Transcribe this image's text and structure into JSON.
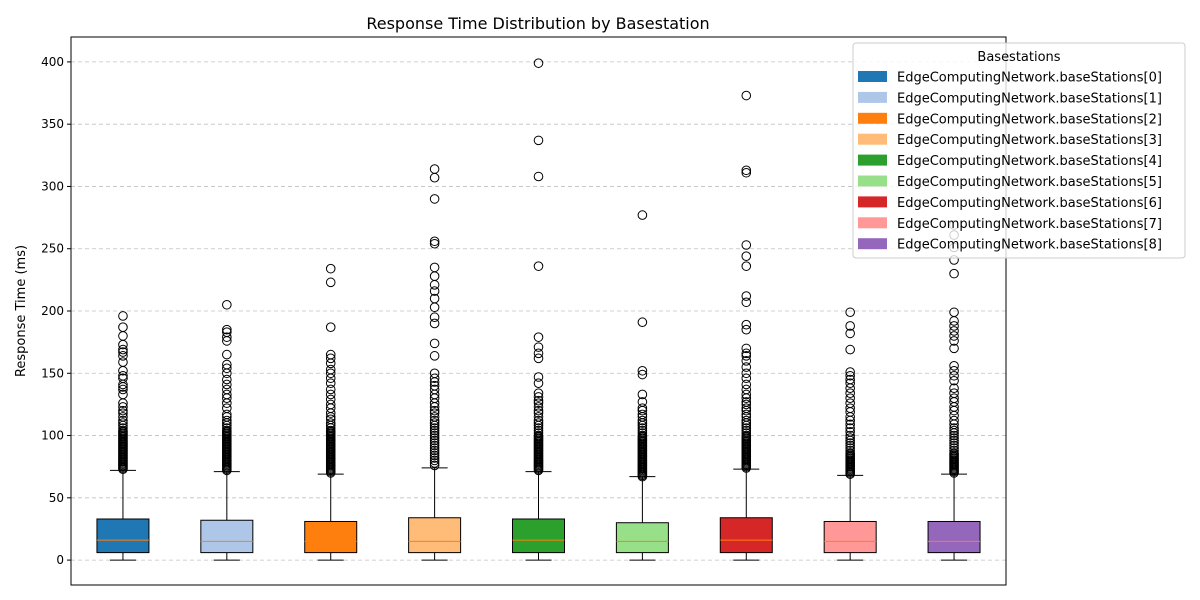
{
  "chart_data": {
    "type": "box",
    "title": "Response Time Distribution by Basestation",
    "xlabel": "",
    "ylabel": "Response Time (ms)",
    "ylim": [
      -20,
      420
    ],
    "yticks": [
      0,
      50,
      100,
      150,
      200,
      250,
      300,
      350,
      400
    ],
    "grid": "y-dashed",
    "legend": {
      "title": "Basestations",
      "placement": "upper-right-outside"
    },
    "series": [
      {
        "name": "EdgeComputingNetwork.baseStations[0]",
        "color": "#1f77b4",
        "whisker_low": 0,
        "q1": 6,
        "median": 16,
        "q3": 33,
        "whisker_high": 72,
        "fliers": [
          73,
          74,
          75,
          76,
          77,
          78,
          79,
          80,
          81,
          82,
          83,
          84,
          85,
          86,
          87,
          88,
          89,
          90,
          91,
          92,
          93,
          94,
          95,
          96,
          97,
          98,
          99,
          100,
          101,
          102,
          103,
          104,
          106,
          108,
          110,
          112,
          115,
          118,
          120,
          123,
          126,
          133,
          137,
          139,
          141,
          146,
          148,
          152,
          159,
          164,
          167,
          169,
          173,
          180,
          187,
          196
        ]
      },
      {
        "name": "EdgeComputingNetwork.baseStations[1]",
        "color": "#aec7e8",
        "whisker_low": 0,
        "q1": 6,
        "median": 15,
        "q3": 32,
        "whisker_high": 71,
        "fliers": [
          72,
          73,
          74,
          75,
          76,
          77,
          78,
          79,
          80,
          81,
          82,
          83,
          84,
          85,
          86,
          87,
          88,
          89,
          90,
          91,
          92,
          93,
          94,
          95,
          96,
          97,
          98,
          99,
          100,
          101,
          102,
          103,
          104,
          106,
          108,
          110,
          112,
          115,
          117,
          122,
          126,
          130,
          133,
          137,
          141,
          145,
          150,
          154,
          157,
          165,
          176,
          179,
          183,
          185,
          205
        ]
      },
      {
        "name": "EdgeComputingNetwork.baseStations[2]",
        "color": "#ff7f0e",
        "whisker_low": 0,
        "q1": 6,
        "median": 15,
        "q3": 31,
        "whisker_high": 69,
        "fliers": [
          70,
          71,
          72,
          73,
          74,
          75,
          76,
          77,
          78,
          79,
          80,
          81,
          82,
          83,
          84,
          85,
          86,
          87,
          88,
          89,
          90,
          91,
          92,
          93,
          94,
          95,
          96,
          97,
          98,
          99,
          100,
          101,
          102,
          103,
          104,
          106,
          108,
          110,
          113,
          115,
          118,
          122,
          125,
          129,
          133,
          137,
          142,
          146,
          150,
          153,
          158,
          162,
          165,
          187,
          223,
          234
        ]
      },
      {
        "name": "EdgeComputingNetwork.baseStations[3]",
        "color": "#ffbb78",
        "whisker_low": 0,
        "q1": 6,
        "median": 15,
        "q3": 34,
        "whisker_high": 74,
        "fliers": [
          76,
          78,
          80,
          82,
          84,
          86,
          88,
          90,
          92,
          94,
          96,
          98,
          100,
          102,
          104,
          106,
          108,
          110,
          112,
          115,
          118,
          120,
          123,
          126,
          130,
          133,
          137,
          140,
          143,
          146,
          150,
          164,
          174,
          190,
          195,
          203,
          210,
          216,
          221,
          228,
          235,
          254,
          256,
          290,
          307,
          314
        ]
      },
      {
        "name": "EdgeComputingNetwork.baseStations[4]",
        "color": "#2ca02c",
        "whisker_low": 0,
        "q1": 6,
        "median": 16,
        "q3": 33,
        "whisker_high": 71,
        "fliers": [
          72,
          73,
          74,
          75,
          76,
          77,
          78,
          79,
          80,
          81,
          82,
          83,
          84,
          85,
          86,
          87,
          88,
          89,
          90,
          91,
          92,
          93,
          94,
          95,
          96,
          97,
          98,
          99,
          100,
          102,
          104,
          106,
          108,
          110,
          112,
          115,
          118,
          120,
          123,
          126,
          128,
          131,
          134,
          142,
          147,
          162,
          166,
          171,
          179,
          236,
          308,
          337,
          399
        ]
      },
      {
        "name": "EdgeComputingNetwork.baseStations[5]",
        "color": "#98df8a",
        "whisker_low": 0,
        "q1": 6,
        "median": 15,
        "q3": 30,
        "whisker_high": 67,
        "fliers": [
          67,
          68,
          69,
          70,
          71,
          72,
          73,
          74,
          75,
          76,
          77,
          78,
          79,
          80,
          81,
          82,
          83,
          84,
          85,
          86,
          87,
          88,
          89,
          90,
          91,
          92,
          93,
          94,
          95,
          96,
          97,
          98,
          99,
          100,
          102,
          104,
          106,
          108,
          110,
          112,
          115,
          117,
          120,
          122,
          127,
          133,
          149,
          152,
          191,
          277
        ]
      },
      {
        "name": "EdgeComputingNetwork.baseStations[6]",
        "color": "#d62728",
        "whisker_low": 0,
        "q1": 6,
        "median": 16,
        "q3": 34,
        "whisker_high": 73,
        "fliers": [
          74,
          75,
          76,
          77,
          78,
          79,
          80,
          81,
          82,
          83,
          84,
          85,
          86,
          87,
          88,
          89,
          90,
          91,
          92,
          93,
          94,
          95,
          96,
          97,
          98,
          99,
          100,
          102,
          104,
          106,
          108,
          110,
          112,
          115,
          117,
          120,
          122,
          125,
          127,
          130,
          133,
          137,
          141,
          146,
          150,
          155,
          160,
          164,
          166,
          170,
          185,
          189,
          207,
          212,
          236,
          244,
          253,
          311,
          313,
          373
        ]
      },
      {
        "name": "EdgeComputingNetwork.baseStations[7]",
        "color": "#ff9896",
        "whisker_low": 0,
        "q1": 6,
        "median": 15,
        "q3": 31,
        "whisker_high": 68,
        "fliers": [
          69,
          70,
          71,
          72,
          73,
          74,
          75,
          76,
          77,
          78,
          79,
          80,
          81,
          82,
          83,
          84,
          85,
          86,
          88,
          90,
          92,
          94,
          96,
          98,
          100,
          103,
          106,
          109,
          112,
          115,
          119,
          122,
          126,
          130,
          134,
          138,
          142,
          145,
          148,
          151,
          169,
          182,
          188,
          199
        ]
      },
      {
        "name": "EdgeComputingNetwork.baseStations[8]",
        "color": "#9467bd",
        "whisker_low": 0,
        "q1": 6,
        "median": 15,
        "q3": 31,
        "whisker_high": 69,
        "fliers": [
          70,
          71,
          72,
          73,
          74,
          75,
          76,
          77,
          78,
          79,
          80,
          81,
          82,
          83,
          84,
          85,
          86,
          88,
          90,
          92,
          94,
          96,
          98,
          100,
          102,
          104,
          106,
          109,
          112,
          116,
          120,
          123,
          127,
          130,
          134,
          138,
          144,
          148,
          152,
          156,
          170,
          176,
          180,
          184,
          188,
          192,
          199,
          230,
          241,
          251,
          261,
          269
        ]
      }
    ]
  }
}
